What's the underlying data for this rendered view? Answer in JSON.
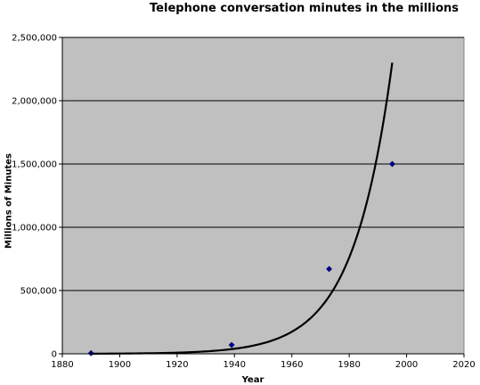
{
  "chart_data": {
    "type": "scatter",
    "title": "Telephone conversation minutes in the millions",
    "xlabel": "Year",
    "ylabel": "Millions of Minutes",
    "xlim": [
      1880,
      2020
    ],
    "ylim": [
      0,
      2500000
    ],
    "x_ticks": [
      "1880",
      "1900",
      "1920",
      "1940",
      "1960",
      "1980",
      "2000",
      "2020"
    ],
    "y_ticks": [
      "0",
      "500,000",
      "1,000,000",
      "1,500,000",
      "2,000,000",
      "2,500,000"
    ],
    "grid": "horizontal",
    "plot_background": "#c0c0c0",
    "point_color": "#000080",
    "points": [
      {
        "x": 1890,
        "y": 5000
      },
      {
        "x": 1939,
        "y": 70000
      },
      {
        "x": 1973,
        "y": 670000
      },
      {
        "x": 1995,
        "y": 1500000
      }
    ],
    "trendline": {
      "type": "exponential",
      "x_range": [
        1890,
        1995
      ],
      "y_start": 1000,
      "y_end": 2300000
    }
  }
}
